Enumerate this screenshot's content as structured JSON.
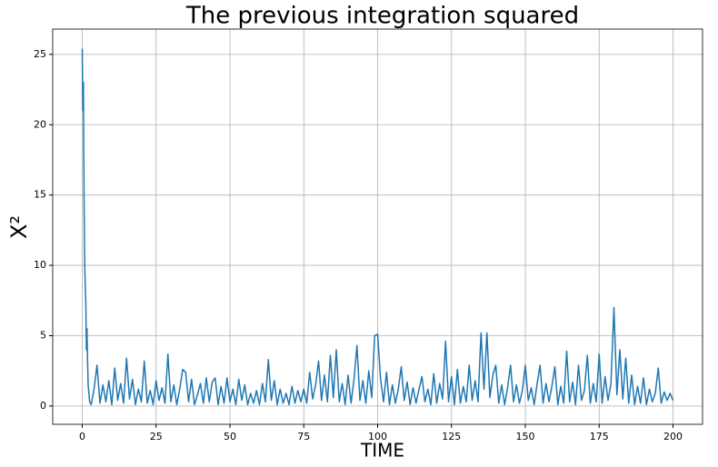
{
  "chart_data": {
    "type": "line",
    "title": "The previous integration squared",
    "xlabel": "TIME",
    "ylabel": "X²",
    "x": [
      0,
      0.2,
      0.4,
      0.6,
      0.8,
      1,
      1.2,
      1.4,
      1.6,
      1.8,
      2,
      2.5,
      3,
      4,
      5,
      6,
      7,
      8,
      9,
      10,
      11,
      12,
      13,
      14,
      15,
      16,
      17,
      18,
      19,
      20,
      21,
      22,
      23,
      24,
      25,
      26,
      27,
      28,
      29,
      30,
      31,
      32,
      33,
      34,
      35,
      36,
      37,
      38,
      39,
      40,
      41,
      42,
      43,
      44,
      45,
      46,
      47,
      48,
      49,
      50,
      51,
      52,
      53,
      54,
      55,
      56,
      57,
      58,
      59,
      60,
      61,
      62,
      63,
      64,
      65,
      66,
      67,
      68,
      69,
      70,
      71,
      72,
      73,
      74,
      75,
      76,
      77,
      78,
      79,
      80,
      81,
      82,
      83,
      84,
      85,
      86,
      87,
      88,
      89,
      90,
      91,
      92,
      93,
      94,
      95,
      96,
      97,
      98,
      99,
      100,
      101,
      102,
      103,
      104,
      105,
      106,
      107,
      108,
      109,
      110,
      111,
      112,
      113,
      114,
      115,
      116,
      117,
      118,
      119,
      120,
      121,
      122,
      123,
      124,
      125,
      126,
      127,
      128,
      129,
      130,
      131,
      132,
      133,
      134,
      135,
      136,
      137,
      138,
      139,
      140,
      141,
      142,
      143,
      144,
      145,
      146,
      147,
      148,
      149,
      150,
      151,
      152,
      153,
      154,
      155,
      156,
      157,
      158,
      159,
      160,
      161,
      162,
      163,
      164,
      165,
      166,
      167,
      168,
      169,
      170,
      171,
      172,
      173,
      174,
      175,
      176,
      177,
      178,
      179,
      180,
      181,
      182,
      183,
      184,
      185,
      186,
      187,
      188,
      189,
      190,
      191,
      192,
      193,
      194,
      195,
      196,
      197,
      198,
      199,
      200
    ],
    "series": [
      {
        "color": "#1f77b4",
        "values": [
          25.4,
          21,
          23,
          15,
          10.5,
          8.6,
          7.4,
          4,
          5.5,
          3.2,
          1.5,
          0.3,
          0.1,
          1.2,
          2.9,
          0.2,
          1.5,
          0.3,
          1.8,
          0.1,
          2.7,
          0.4,
          1.6,
          0.2,
          3.4,
          0.5,
          1.9,
          0.1,
          1.2,
          0.3,
          3.2,
          0.2,
          1.1,
          0.1,
          1.8,
          0.4,
          1.3,
          0.2,
          3.7,
          0.3,
          1.5,
          0.1,
          1.2,
          2.6,
          2.4,
          0.3,
          1.9,
          0.1,
          0.8,
          1.6,
          0.2,
          2,
          0.3,
          1.7,
          2,
          0.1,
          1.4,
          0.2,
          2,
          0.3,
          1.2,
          0.1,
          1.9,
          0.4,
          1.5,
          0.1,
          0.9,
          0.2,
          1.1,
          0.1,
          1.6,
          0.3,
          3.3,
          0.4,
          1.8,
          0.1,
          1.2,
          0.2,
          0.9,
          0.1,
          1.4,
          0.2,
          1.1,
          0.3,
          1.2,
          0.2,
          2.4,
          0.5,
          1.5,
          3.2,
          0.4,
          2.2,
          0.3,
          3.6,
          0.6,
          4,
          0.3,
          1.6,
          0.1,
          2.2,
          0.2,
          1.9,
          4.3,
          0.4,
          1.8,
          0.2,
          2.5,
          0.6,
          5,
          5.1,
          1.9,
          0.3,
          2.4,
          0.1,
          1.5,
          0.2,
          1.2,
          2.8,
          0.4,
          1.7,
          0.1,
          1.3,
          0.2,
          1.2,
          2.1,
          0.3,
          1.2,
          0.1,
          2.3,
          0.2,
          1.6,
          0.5,
          4.6,
          0.3,
          2.1,
          0.1,
          2.6,
          0.2,
          1.4,
          0.3,
          2.9,
          0.4,
          1.8,
          0.3,
          5.2,
          1.2,
          5.2,
          0.6,
          2.2,
          2.9,
          0.2,
          1.5,
          0.1,
          1.3,
          2.9,
          0.3,
          1.5,
          0.2,
          1.1,
          2.9,
          0.4,
          1.3,
          0.1,
          1.6,
          2.9,
          0.2,
          1.6,
          0.3,
          1.4,
          2.8,
          0.1,
          1.4,
          0.2,
          3.9,
          0.3,
          1.7,
          0.1,
          2.9,
          0.4,
          1.1,
          3.6,
          0.2,
          1.6,
          0.3,
          3.7,
          0.2,
          2.1,
          0.4,
          1.6,
          7,
          0.8,
          4,
          0.5,
          3.4,
          0.2,
          2.2,
          0.1,
          1.4,
          0.2,
          2,
          0.1,
          1.2,
          0.3,
          0.9,
          2.7,
          0.2,
          1,
          0.4,
          0.9,
          0.4
        ]
      }
    ],
    "xlim": [
      -10,
      210
    ],
    "ylim": [
      -1.3,
      26.8
    ],
    "xticks": [
      0,
      25,
      50,
      75,
      100,
      125,
      150,
      175,
      200
    ],
    "yticks": [
      0,
      5,
      10,
      15,
      20,
      25
    ],
    "grid": true
  }
}
